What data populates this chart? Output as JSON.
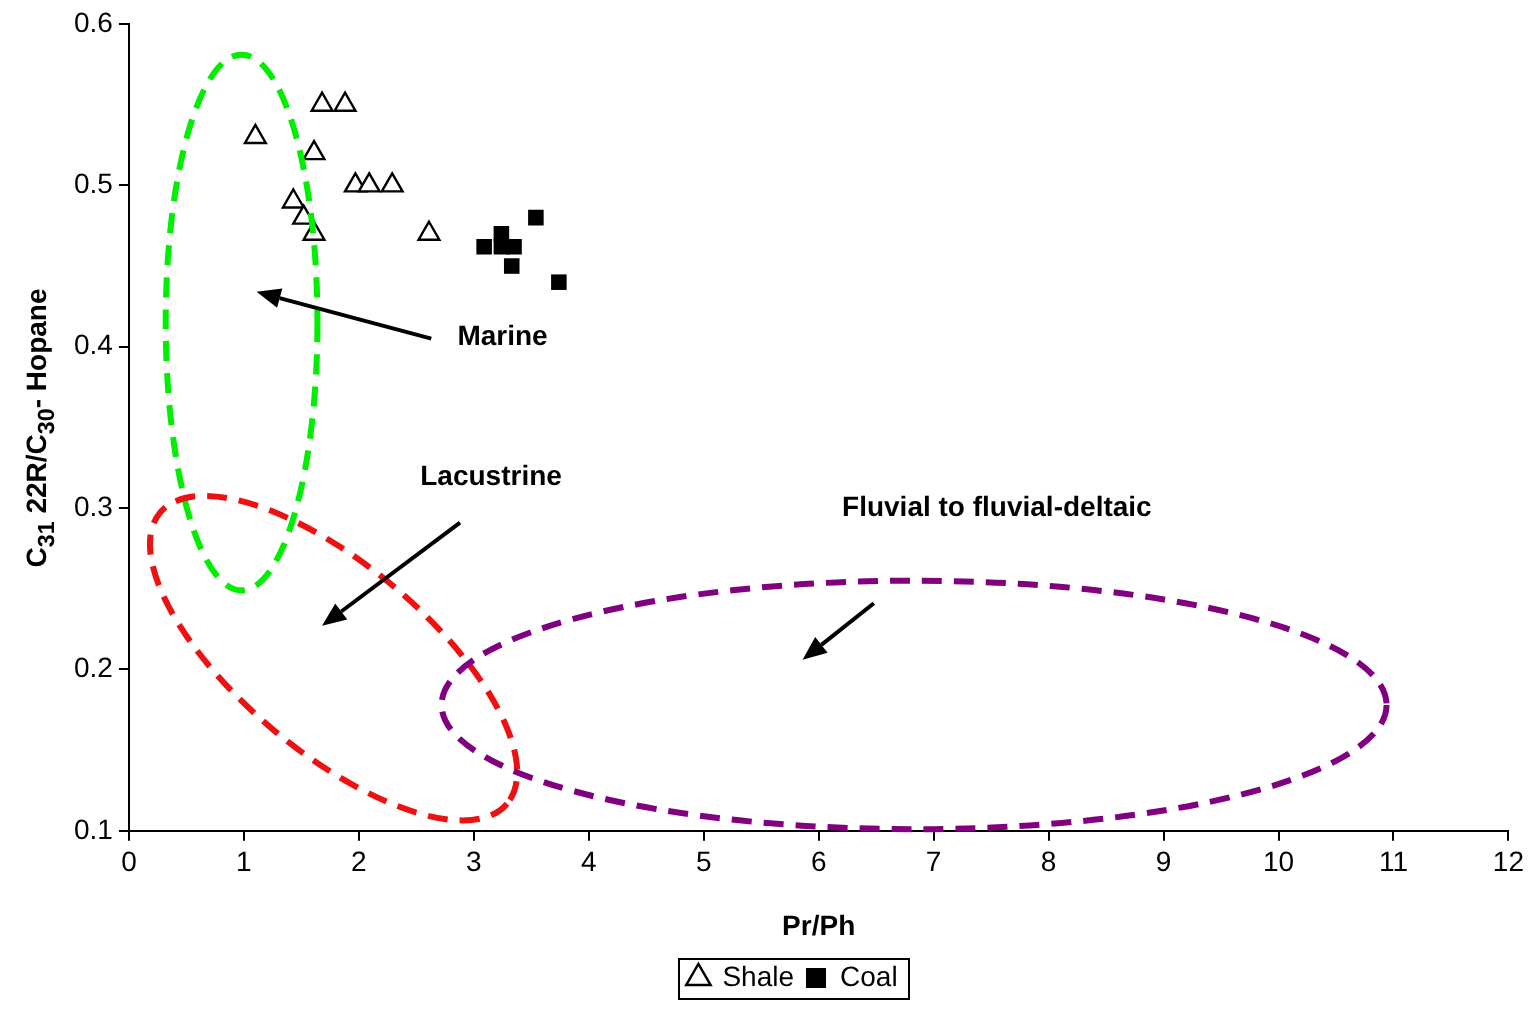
{
  "chart_data": {
    "type": "scatter",
    "xlabel": "Pr/Ph",
    "ylabel": "C$_{31}$ 22R/C$_{30}$- Hopane",
    "xlim": [
      0,
      12
    ],
    "xticks": [
      0,
      1,
      2,
      3,
      4,
      5,
      6,
      7,
      8,
      9,
      10,
      11,
      12
    ],
    "ylim": [
      0.1,
      0.6
    ],
    "yticks": [
      0.1,
      0.2,
      0.3,
      0.4,
      0.5,
      0.6
    ],
    "grid": false,
    "legend": "bottom",
    "series": [
      {
        "name": "Shale",
        "color": "#000000",
        "marker": "triangle",
        "x": [
          1.1,
          1.68,
          1.88,
          1.61,
          1.97,
          2.09,
          2.29,
          1.43,
          1.52,
          1.61,
          2.61
        ],
        "values": [
          0.53,
          0.55,
          0.55,
          0.52,
          0.5,
          0.5,
          0.5,
          0.49,
          0.48,
          0.47,
          0.47
        ]
      },
      {
        "name": "Coal",
        "color": "#000000",
        "marker": "square",
        "x": [
          3.54,
          3.74,
          3.24,
          3.09,
          3.35,
          3.33,
          3.24
        ],
        "values": [
          0.48,
          0.44,
          0.47,
          0.462,
          0.462,
          0.45,
          0.462
        ]
      }
    ],
    "annotations": [
      "Marine",
      "Lacustrine",
      "Fluvial to fluvial-deltaic"
    ]
  }
}
